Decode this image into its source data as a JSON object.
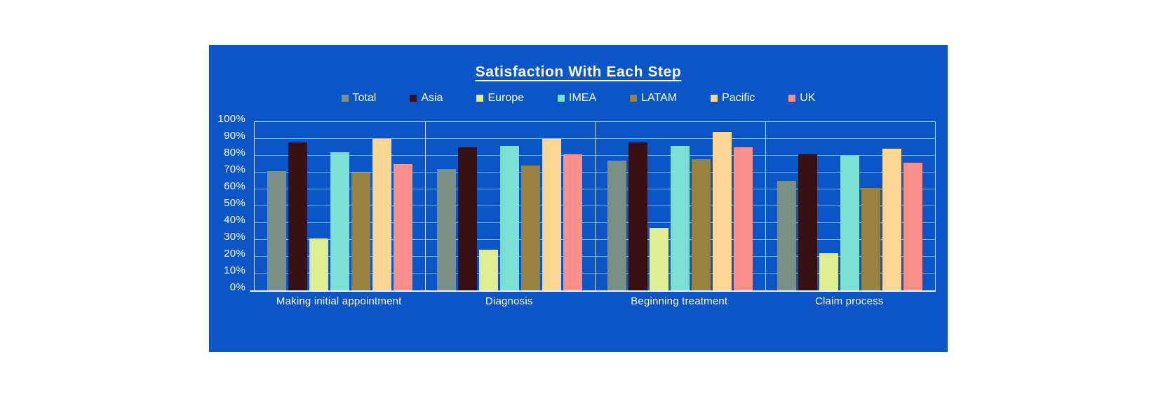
{
  "page": {
    "background": "#FFFFFF"
  },
  "panel": {
    "background": "#0B55C6",
    "text_color": "#FFFFFF"
  },
  "chart_data": {
    "type": "bar",
    "title": "Satisfaction With Each Step",
    "categories": [
      "Making initial appointment",
      "Diagnosis",
      "Beginning treatment",
      "Claim process"
    ],
    "series": [
      {
        "name": "Total",
        "color": "#7A8F86",
        "values": [
          71,
          72,
          77,
          65
        ]
      },
      {
        "name": "Asia",
        "color": "#381013",
        "values": [
          88,
          85,
          88,
          81
        ]
      },
      {
        "name": "Europe",
        "color": "#DEEC92",
        "values": [
          31,
          24,
          37,
          22
        ]
      },
      {
        "name": "IMEA",
        "color": "#7BDFD4",
        "values": [
          82,
          86,
          86,
          80
        ]
      },
      {
        "name": "LATAM",
        "color": "#97823E",
        "values": [
          70,
          74,
          78,
          61
        ]
      },
      {
        "name": "Pacific",
        "color": "#FCD693",
        "values": [
          90,
          90,
          94,
          84
        ]
      },
      {
        "name": "UK",
        "color": "#F9908A",
        "values": [
          75,
          81,
          85,
          76
        ]
      }
    ],
    "y_axis": {
      "min": 0,
      "max": 100,
      "step": 10,
      "tick_labels": [
        "0%",
        "10%",
        "20%",
        "30%",
        "40%",
        "50%",
        "60%",
        "70%",
        "80%",
        "90%",
        "100%"
      ]
    },
    "grid": true,
    "legend_position": "top",
    "gridline_color": "rgba(222,229,246,0.65)",
    "axis_line_color": "#EFF2FB"
  }
}
